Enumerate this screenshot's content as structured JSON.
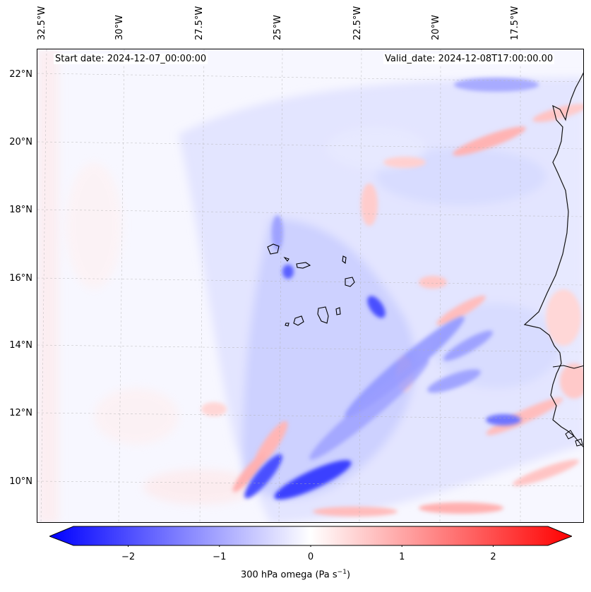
{
  "map": {
    "annotation_left": "Start date: 2024-12-07_00:00:00",
    "annotation_right": "Valid_date: 2024-12-08T17:00:00.00",
    "lon_labels": [
      "32.5°W",
      "30°W",
      "27.5°W",
      "25°W",
      "22.5°W",
      "20°W",
      "17.5°W"
    ],
    "lat_labels": [
      "22°N",
      "20°N",
      "18°N",
      "16°N",
      "14°N",
      "12°N",
      "10°N"
    ],
    "field": "300 hPa omega",
    "colormap": "bwr"
  },
  "colorbar": {
    "label": "300 hPa omega (Pa s",
    "label_exp": "−1",
    "label_close": ")",
    "ticks": [
      "−2",
      "−1",
      "0",
      "1",
      "2"
    ],
    "tick_values": [
      -2,
      -1,
      0,
      1,
      2
    ],
    "range": [
      -2.6,
      2.6
    ],
    "colors": {
      "min": "#0000ff",
      "mid": "#ffffff",
      "max": "#ff0000"
    }
  }
}
